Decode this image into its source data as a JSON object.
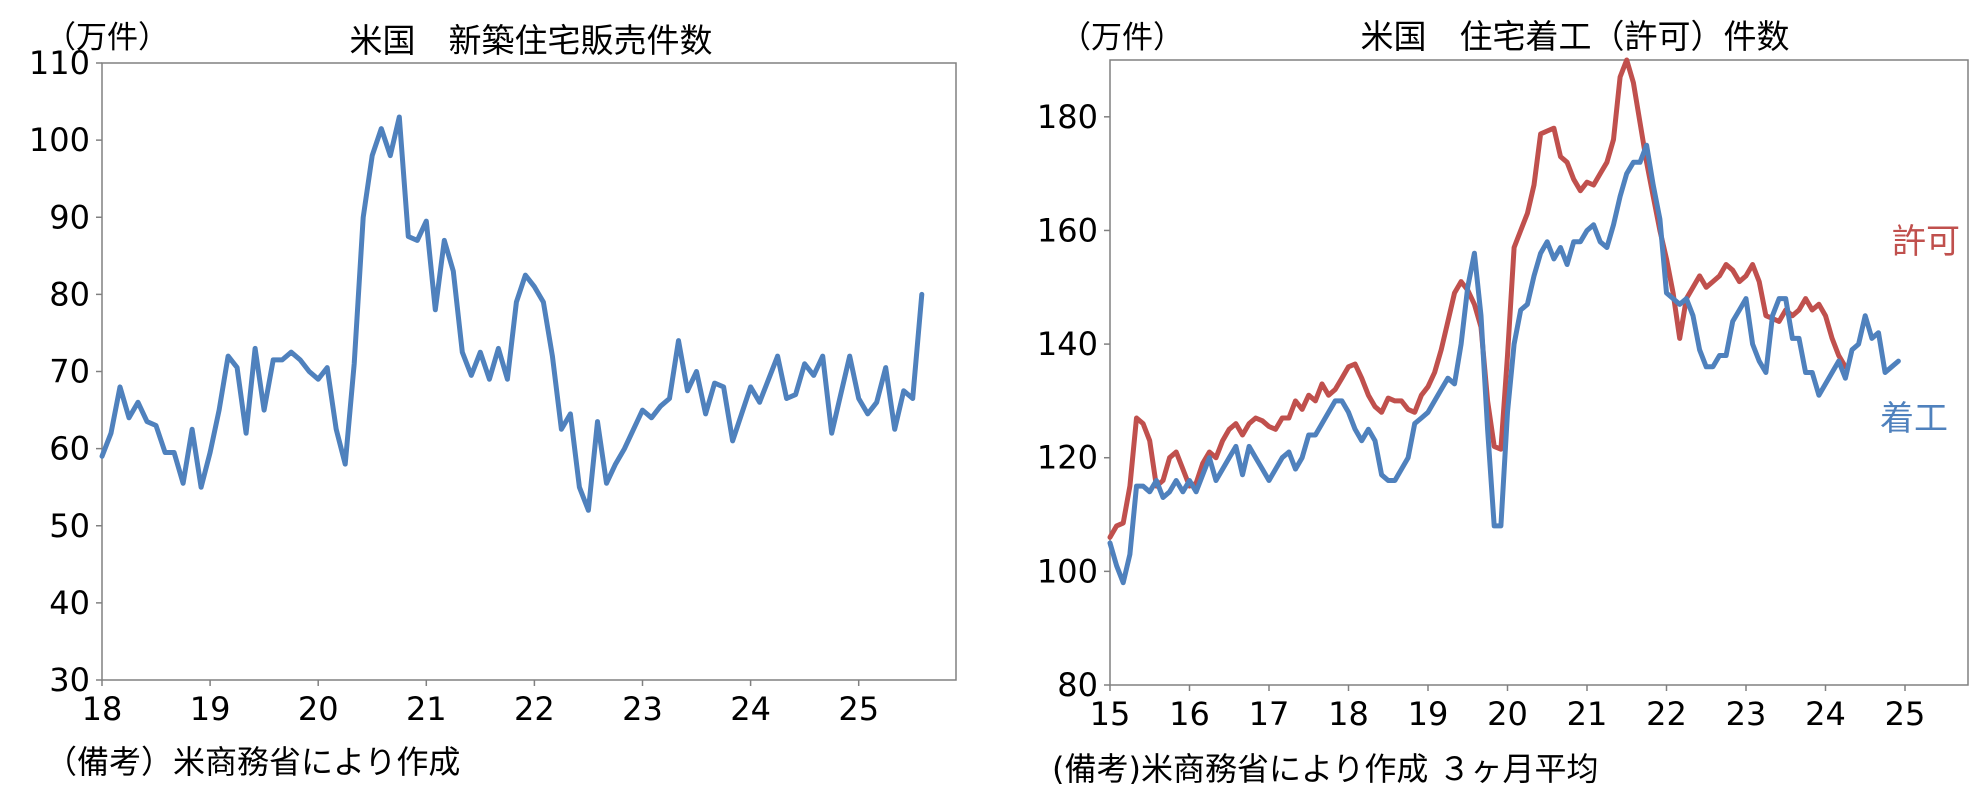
{
  "chart_data": [
    {
      "type": "line",
      "title": "米国　新築住宅販売件数",
      "unit_label": "（万件）",
      "note": "（備考）米商務省により作成",
      "ylim": [
        30,
        110
      ],
      "y_ticks": [
        "110",
        "100",
        "90",
        "80",
        "70",
        "60",
        "50",
        "40",
        "30"
      ],
      "xlim": [
        2018.0,
        2026.0
      ],
      "x_ticks": [
        {
          "label": "18",
          "x": 2018
        },
        {
          "label": "19",
          "x": 2019
        },
        {
          "label": "20",
          "x": 2020
        },
        {
          "label": "21",
          "x": 2021
        },
        {
          "label": "22",
          "x": 2022
        },
        {
          "label": "23",
          "x": 2023
        },
        {
          "label": "24",
          "x": 2024
        },
        {
          "label": "25",
          "x": 2025
        }
      ],
      "grid": false,
      "series": [
        {
          "color": "#4F81BD",
          "x_start": 2018.0,
          "x_step": 0.0833333,
          "values": [
            59,
            62,
            68,
            64,
            66,
            63.5,
            63,
            59.5,
            59.5,
            55.5,
            62.5,
            55,
            59.5,
            65,
            72,
            70.5,
            62,
            73,
            65,
            71.5,
            71.5,
            72.5,
            71.5,
            70,
            69,
            70.5,
            62.5,
            58,
            71,
            90,
            98,
            101.5,
            98,
            103,
            87.5,
            87,
            89.5,
            78,
            87,
            83,
            72.5,
            69.5,
            72.5,
            69,
            73,
            69,
            79,
            82.5,
            81,
            79,
            72,
            62.5,
            64.5,
            55,
            52,
            63.5,
            55.5,
            58,
            60,
            62.5,
            65,
            64,
            65.5,
            66.5,
            74,
            67.5,
            70,
            64.5,
            68.5,
            68,
            61,
            64.5,
            68,
            66,
            69,
            72,
            66.5,
            67,
            71,
            69.5,
            72,
            62,
            67,
            72,
            66.5,
            64.5,
            66,
            70.5,
            62.5,
            67.5,
            66.5,
            80
          ]
        }
      ]
    },
    {
      "type": "line",
      "title": "米国　住宅着工（許可）件数",
      "unit_label": "（万件）",
      "note": "(備考)米商務省により作成 ３ヶ月平均",
      "ylim": [
        80,
        190
      ],
      "y_ticks": [
        "180",
        "160",
        "140",
        "120",
        "100",
        "80"
      ],
      "xlim": [
        2015.0,
        2025.75
      ],
      "x_ticks": [
        {
          "label": "15",
          "x": 2015
        },
        {
          "label": "16",
          "x": 2016
        },
        {
          "label": "17",
          "x": 2017
        },
        {
          "label": "18",
          "x": 2018
        },
        {
          "label": "19",
          "x": 2019
        },
        {
          "label": "20",
          "x": 2020
        },
        {
          "label": "21",
          "x": 2021
        },
        {
          "label": "22",
          "x": 2022
        },
        {
          "label": "23",
          "x": 2023
        },
        {
          "label": "24",
          "x": 2024
        },
        {
          "label": "25",
          "x": 2025
        }
      ],
      "grid": false,
      "series": [
        {
          "name": "許可",
          "color": "#C0504D",
          "x_start": 2015.0,
          "x_step": 0.0833333,
          "values": [
            106,
            108,
            108.5,
            115,
            127,
            126,
            123,
            115,
            116,
            120,
            121,
            118,
            115,
            115.5,
            119,
            121,
            120,
            123,
            125,
            126,
            124,
            126,
            127,
            126.5,
            125.5,
            125,
            127,
            127,
            130,
            128.5,
            131,
            130,
            133,
            131,
            132,
            134,
            136,
            136.5,
            134,
            131,
            129,
            128,
            130.5,
            130,
            130,
            128.5,
            128,
            131,
            132.5,
            135,
            139,
            144,
            149,
            151,
            149.5,
            147,
            143,
            130,
            122,
            121.5,
            138,
            157,
            160,
            163,
            168,
            177,
            177.5,
            178,
            173,
            172,
            169,
            167,
            168.5,
            168,
            170,
            172,
            176,
            187,
            190,
            186,
            179,
            172,
            166,
            160,
            155,
            149,
            141,
            148,
            150,
            152,
            150,
            151,
            152,
            154,
            153,
            151,
            152,
            154,
            151,
            145,
            144.5,
            144,
            146,
            145,
            146,
            148,
            146,
            147,
            145,
            141,
            138,
            136
          ]
        },
        {
          "name": "着工",
          "color": "#4F81BD",
          "x_start": 2015.0,
          "x_step": 0.0833333,
          "values": [
            105,
            101,
            98,
            103,
            115,
            115,
            114,
            116,
            113,
            114,
            116,
            114,
            116,
            114,
            117,
            120,
            116,
            118,
            120,
            122,
            117,
            122,
            120,
            118,
            116,
            118,
            120,
            121,
            118,
            120,
            124,
            124,
            126,
            128,
            130,
            130,
            128,
            125,
            123,
            125,
            123,
            117,
            116,
            116,
            118,
            120,
            126,
            127,
            128,
            130,
            132,
            134,
            133,
            140,
            150,
            156,
            145,
            125,
            108,
            108,
            128,
            140,
            146,
            147,
            152,
            156,
            158,
            155,
            157,
            154,
            158,
            158,
            160,
            161,
            158,
            157,
            161,
            166,
            170,
            172,
            172,
            175,
            168,
            162,
            149,
            148,
            147,
            148,
            145,
            139,
            136,
            136,
            138,
            138,
            144,
            146,
            148,
            140,
            137,
            135,
            145,
            148,
            148,
            141,
            141,
            135,
            135,
            131,
            133,
            135,
            137,
            134,
            139,
            140,
            145,
            141,
            142,
            135,
            136,
            137
          ]
        }
      ]
    }
  ]
}
